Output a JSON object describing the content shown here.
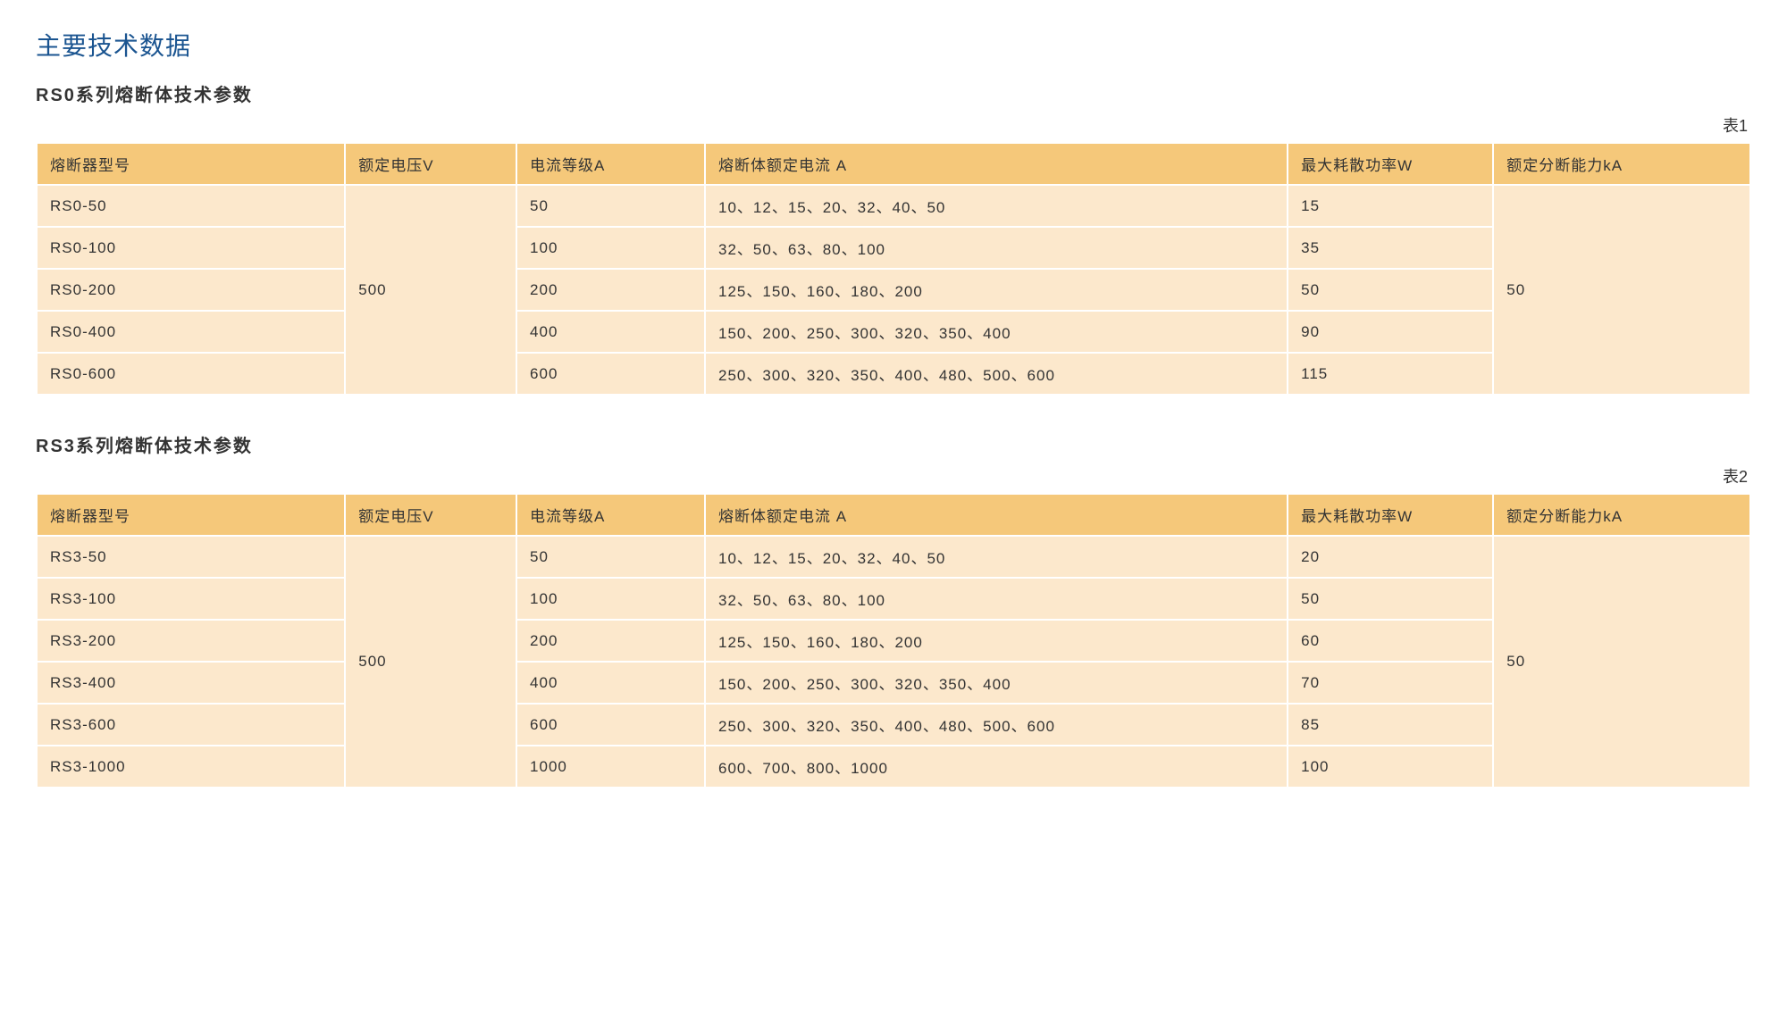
{
  "page": {
    "title": "主要技术数据"
  },
  "colors": {
    "title_color": "#1a5490",
    "header_bg": "#f5c87a",
    "cell_bg": "#fce8cc",
    "border": "#ffffff",
    "text": "#333333"
  },
  "table1": {
    "section_title": "RS0系列熔断体技术参数",
    "table_label": "表1",
    "columns": [
      "熔断器型号",
      "额定电压V",
      "电流等级A",
      "熔断体额定电流 A",
      "最大耗散功率W",
      "额定分断能力kA"
    ],
    "merged_voltage": "500",
    "merged_break": "50",
    "rows": [
      {
        "model": "RS0-50",
        "grade": "50",
        "rated": "10、12、15、20、32、40、50",
        "power": "15"
      },
      {
        "model": "RS0-100",
        "grade": "100",
        "rated": "32、50、63、80、100",
        "power": "35"
      },
      {
        "model": "RS0-200",
        "grade": "200",
        "rated": "125、150、160、180、200",
        "power": "50"
      },
      {
        "model": "RS0-400",
        "grade": "400",
        "rated": "150、200、250、300、320、350、400",
        "power": "90"
      },
      {
        "model": "RS0-600",
        "grade": "600",
        "rated": "250、300、320、350、400、480、500、600",
        "power": "115"
      }
    ]
  },
  "table2": {
    "section_title": "RS3系列熔断体技术参数",
    "table_label": "表2",
    "columns": [
      "熔断器型号",
      "额定电压V",
      "电流等级A",
      "熔断体额定电流 A",
      "最大耗散功率W",
      "额定分断能力kA"
    ],
    "merged_voltage": "500",
    "merged_break": "50",
    "rows": [
      {
        "model": "RS3-50",
        "grade": "50",
        "rated": "10、12、15、20、32、40、50",
        "power": "20"
      },
      {
        "model": "RS3-100",
        "grade": "100",
        "rated": "32、50、63、80、100",
        "power": "50"
      },
      {
        "model": "RS3-200",
        "grade": "200",
        "rated": "125、150、160、180、200",
        "power": "60"
      },
      {
        "model": "RS3-400",
        "grade": "400",
        "rated": "150、200、250、300、320、350、400",
        "power": "70"
      },
      {
        "model": "RS3-600",
        "grade": "600",
        "rated": "250、300、320、350、400、480、500、600",
        "power": "85"
      },
      {
        "model": "RS3-1000",
        "grade": "1000",
        "rated": "600、700、800、1000",
        "power": "100"
      }
    ]
  }
}
